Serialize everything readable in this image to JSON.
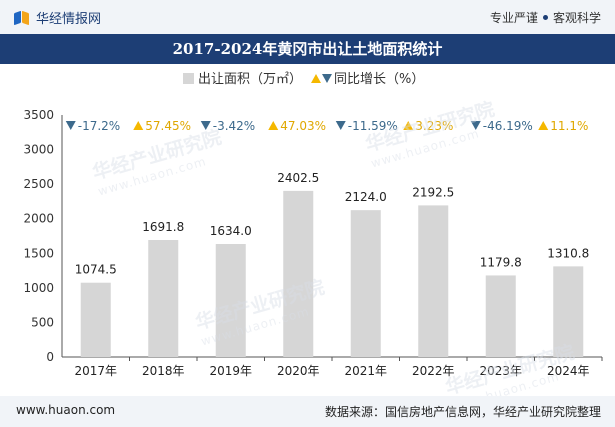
{
  "header": {
    "brand": "华经情报网",
    "slogan_left": "专业严谨",
    "slogan_right": "客观科学"
  },
  "footer": {
    "website": "www.huaon.com",
    "source": "数据来源：国信房地产信息网，华经产业研究院整理"
  },
  "watermark": {
    "text": "华经产业研究院",
    "url": "www.huaon.com"
  },
  "colors": {
    "bar": "#d6d6d6",
    "up": "#f5b800",
    "down": "#3d6a8c",
    "title_bg": "#1d3e75"
  },
  "chart_data": {
    "type": "bar",
    "title": "2017-2024年黄冈市出让土地面积统计",
    "categories": [
      "2017年",
      "2018年",
      "2019年",
      "2020年",
      "2021年",
      "2022年",
      "2023年",
      "2024年"
    ],
    "series": [
      {
        "name": "出让面积（万㎡）",
        "values": [
          1074.5,
          1691.8,
          1634.0,
          2402.5,
          2124.0,
          2192.5,
          1179.8,
          1310.8
        ]
      }
    ],
    "value_labels": [
      "1074.5",
      "1691.8",
      "1634.0",
      "2402.5",
      "2124.0",
      "2192.5",
      "1179.8",
      "1310.8"
    ],
    "growth": {
      "name": "同比增长（%）",
      "labels": [
        "-17.2%",
        "57.45%",
        "-3.42%",
        "47.03%",
        "-11.59%",
        "3.23%",
        "-46.19%",
        "11.1%"
      ],
      "directions": [
        "down",
        "up",
        "down",
        "up",
        "down",
        "up",
        "down",
        "up"
      ]
    },
    "legend": {
      "bar_label": "出让面积（万㎡）",
      "growth_label": "同比增长（%）",
      "position": "top-center"
    },
    "ylim": [
      0,
      3500
    ],
    "yticks": [
      0,
      500,
      1000,
      1500,
      2000,
      2500,
      3000,
      3500
    ],
    "xlabel": "",
    "ylabel": ""
  }
}
